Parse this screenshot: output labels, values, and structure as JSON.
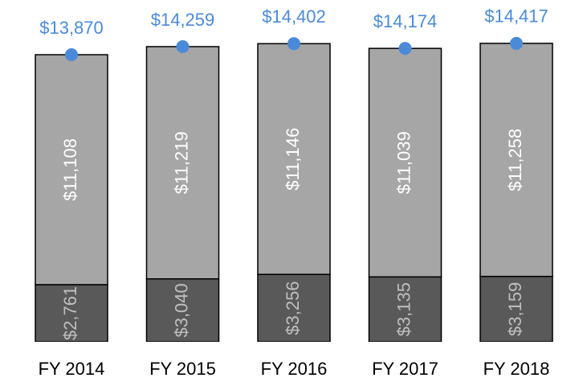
{
  "chart_data": {
    "type": "stacked-bar",
    "categories": [
      "FY 2014",
      "FY 2015",
      "FY 2016",
      "FY 2017",
      "FY 2018"
    ],
    "series": [
      {
        "color": "#595959",
        "label_color": "#bfbfbf",
        "values": [
          2761,
          3040,
          3256,
          3135,
          3159
        ],
        "value_labels": [
          "$2,761",
          "$3,040",
          "$3,256",
          "$3,135",
          "$3,159"
        ]
      },
      {
        "color": "#a6a6a6",
        "label_color": "#ffffff",
        "values": [
          11108,
          11219,
          11146,
          11039,
          11258
        ],
        "value_labels": [
          "$11,108",
          "$11,219",
          "$11,146",
          "$11,039",
          "$11,258"
        ]
      }
    ],
    "totals": {
      "color": "#4a8ad8",
      "values": [
        13870,
        14259,
        14402,
        14174,
        14417
      ],
      "value_labels": [
        "$13,870",
        "$14,259",
        "$14,402",
        "$14,174",
        "$14,417"
      ]
    }
  }
}
